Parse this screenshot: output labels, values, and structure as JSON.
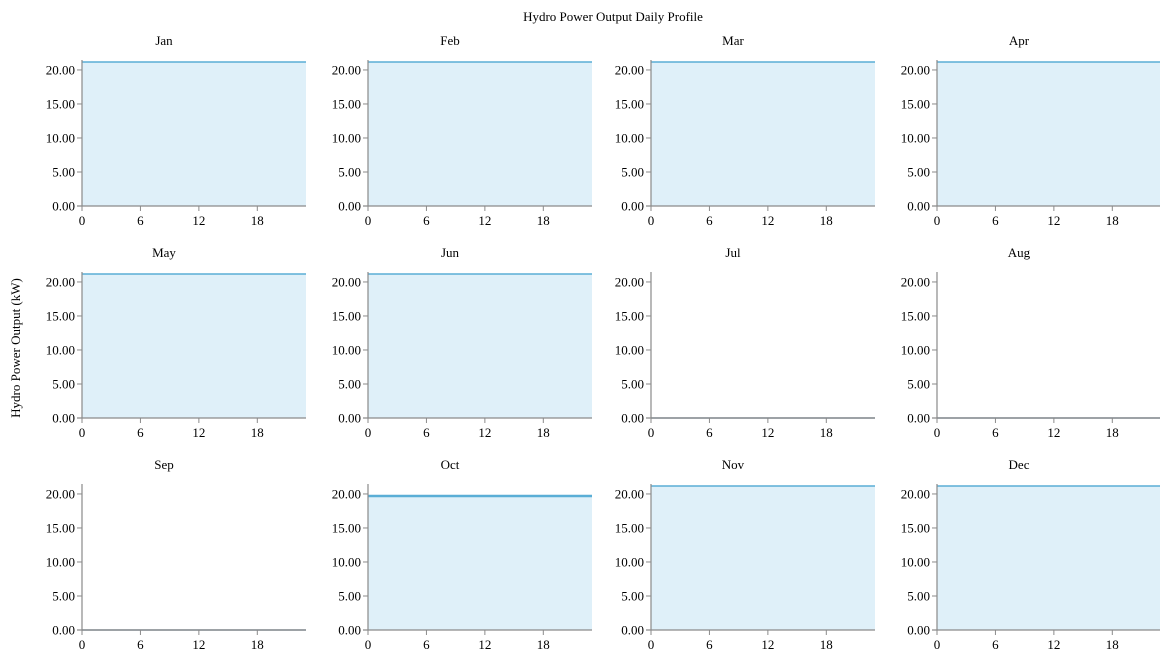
{
  "chart_data": {
    "type": "area",
    "title": "Hydro Power Output Daily Profile",
    "ylabel": "Hydro Power Output (kW)",
    "xlabel": "",
    "xlim": [
      0,
      23
    ],
    "ylim": [
      0,
      21.17
    ],
    "x_ticks": [
      "0",
      "6",
      "12",
      "18"
    ],
    "x_tick_values": [
      0,
      6,
      12,
      18
    ],
    "y_ticks": [
      "0.00",
      "5.00",
      "10.00",
      "15.00",
      "20.00"
    ],
    "y_tick_values": [
      0,
      5,
      10,
      15,
      20
    ],
    "grid": false,
    "fill_color": "#dff0f9",
    "line_color": "#5aaed6",
    "axis_color": "#8a8a8a",
    "panels": [
      {
        "month": "Jan",
        "value": 21.17
      },
      {
        "month": "Feb",
        "value": 21.17
      },
      {
        "month": "Mar",
        "value": 21.17
      },
      {
        "month": "Apr",
        "value": 21.17
      },
      {
        "month": "May",
        "value": 21.17
      },
      {
        "month": "Jun",
        "value": 21.17
      },
      {
        "month": "Jul",
        "value": 0
      },
      {
        "month": "Aug",
        "value": 0
      },
      {
        "month": "Sep",
        "value": 0
      },
      {
        "month": "Oct",
        "value": 19.7
      },
      {
        "month": "Nov",
        "value": 21.17
      },
      {
        "month": "Dec",
        "value": 21.17
      }
    ]
  }
}
